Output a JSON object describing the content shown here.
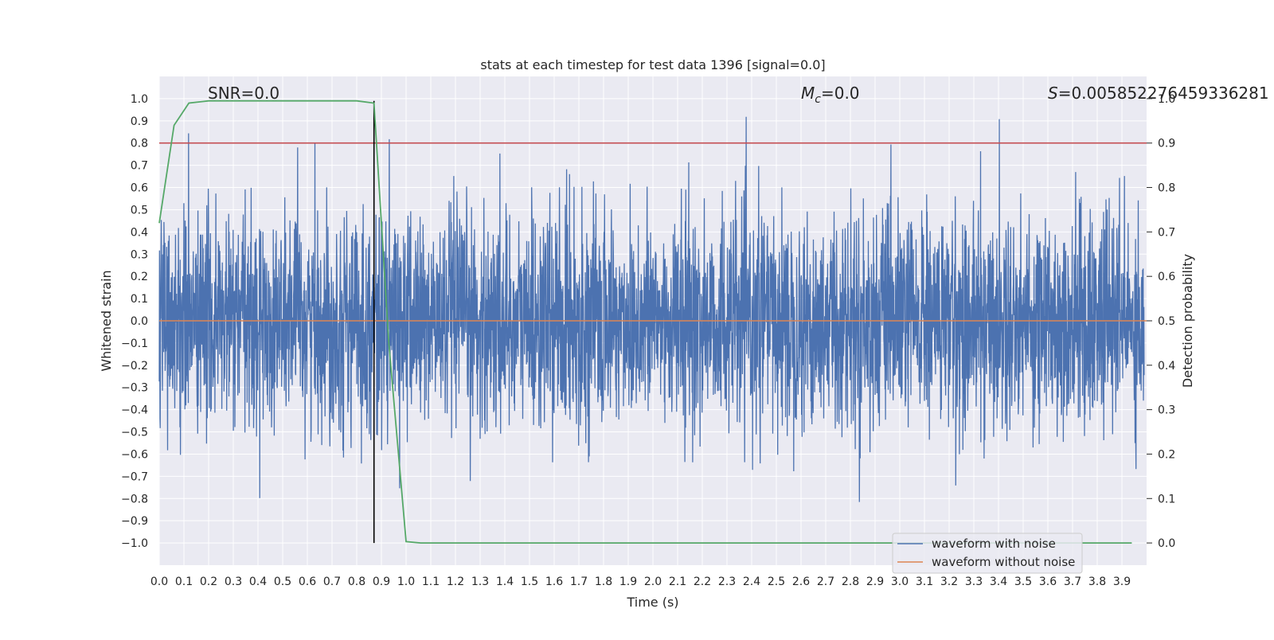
{
  "chart_data": {
    "type": "line",
    "title": "stats at each timestep for test data 1396 [signal=0.0]",
    "xlabel": "Time (s)",
    "ylabel": "Whitened strain",
    "y2label": "Detection probability",
    "xlim": [
      0.0,
      4.0
    ],
    "ylim": [
      -1.1,
      1.1
    ],
    "y2lim": [
      -0.05,
      1.05
    ],
    "xticks": [
      "0.0",
      "0.1",
      "0.2",
      "0.3",
      "0.4",
      "0.5",
      "0.6",
      "0.7",
      "0.8",
      "0.9",
      "1.0",
      "1.1",
      "1.2",
      "1.3",
      "1.4",
      "1.5",
      "1.6",
      "1.7",
      "1.8",
      "1.9",
      "2.0",
      "2.1",
      "2.2",
      "2.3",
      "2.4",
      "2.5",
      "2.6",
      "2.7",
      "2.8",
      "2.9",
      "3.0",
      "3.1",
      "3.2",
      "3.3",
      "3.4",
      "3.5",
      "3.6",
      "3.7",
      "3.8",
      "3.9"
    ],
    "yticks": [
      "1.0",
      "0.9",
      "0.8",
      "0.7",
      "0.6",
      "0.5",
      "0.4",
      "0.3",
      "0.2",
      "0.1",
      "0.0",
      "−0.1",
      "−0.2",
      "−0.3",
      "−0.4",
      "−0.5",
      "−0.6",
      "−0.7",
      "−0.8",
      "−0.9",
      "−1.0"
    ],
    "y2ticks": [
      "1.0",
      "0.9",
      "0.8",
      "0.7",
      "0.6",
      "0.5",
      "0.4",
      "0.3",
      "0.2",
      "0.1",
      "0.0"
    ],
    "annotations": {
      "snr": "SNR=0.0",
      "mc_symbol": "M",
      "mc_sub": "c",
      "mc_value": "=0.0",
      "s_symbol": "S",
      "s_value": "=0.005852276459336281"
    },
    "threshold_line": {
      "axis": "y2",
      "value": 0.9,
      "color": "#c44e52"
    },
    "marker_line": {
      "x": 0.87,
      "y_from": -1.0,
      "y_to": 0.99,
      "color": "#000000"
    },
    "series": [
      {
        "name": "waveform with noise",
        "axis": "y",
        "color": "#4c72b0",
        "note": "whitened noise, amplitude mostly within ±0.5, peaks near ±0.95"
      },
      {
        "name": "waveform without noise",
        "axis": "y",
        "color": "#dd8452",
        "x": [
          0.0,
          4.0
        ],
        "values": [
          0.0,
          0.0
        ]
      },
      {
        "name": "detection probability",
        "axis": "y2",
        "color": "#55a868",
        "x": [
          0.0,
          0.06,
          0.12,
          0.2,
          0.3,
          0.5,
          0.8,
          0.87,
          0.93,
          1.0,
          1.06,
          1.5,
          2.0,
          3.0,
          3.94
        ],
        "values": [
          0.72,
          0.94,
          0.99,
          0.995,
          0.995,
          0.995,
          0.995,
          0.99,
          0.45,
          0.003,
          0.0,
          0.0,
          0.0,
          0.0,
          0.0
        ]
      }
    ],
    "legend": {
      "position": "lower-right",
      "entries": [
        "waveform with noise",
        "waveform without noise"
      ]
    }
  }
}
